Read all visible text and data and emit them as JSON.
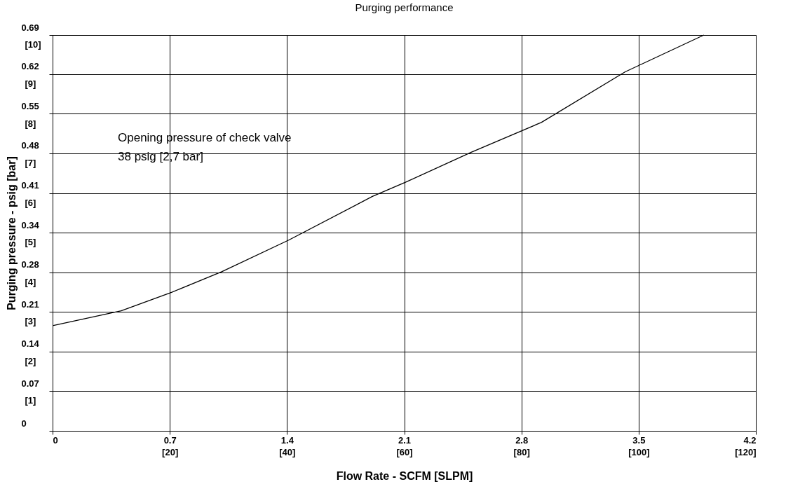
{
  "chart_data": {
    "type": "line",
    "title": "Purging performance",
    "xlabel": "Flow Rate - SCFM [SLPM]",
    "ylabel": "Purging pressure - psig [bar]",
    "x": [
      0,
      0.41,
      0.71,
      1.01,
      1.41,
      1.91,
      2.11,
      2.5,
      2.92,
      3.42,
      3.89
    ],
    "series": [
      {
        "color": "#000000",
        "values": [
          0.183,
          0.209,
          0.241,
          0.277,
          0.332,
          0.408,
          0.433,
          0.485,
          0.537,
          0.625,
          0.689
        ]
      }
    ],
    "xlim": [
      0,
      4.2
    ],
    "ylim": [
      0,
      0.689
    ],
    "xticks": [
      0,
      0.7,
      1.4,
      2.1,
      2.8,
      3.5,
      4.2
    ],
    "x2lim": [
      0,
      120
    ],
    "x2ticks": [
      {
        "value": 20,
        "label": "[20]"
      },
      {
        "value": 40,
        "label": "[40]"
      },
      {
        "value": 60,
        "label": "[60]"
      },
      {
        "value": 80,
        "label": "[80]"
      },
      {
        "value": 100,
        "label": "[100]"
      },
      {
        "value": 120,
        "label": "[120]"
      }
    ],
    "yticks": [
      0,
      {
        "value": 0.069,
        "label": "0.07"
      },
      {
        "value": 0.138,
        "label": "0.14"
      },
      {
        "value": 0.207,
        "label": "0.21"
      },
      {
        "value": 0.276,
        "label": "0.28"
      },
      {
        "value": 0.345,
        "label": "0.34"
      },
      {
        "value": 0.414,
        "label": "0.41"
      },
      {
        "value": 0.483,
        "label": "0.48"
      },
      {
        "value": 0.552,
        "label": "0.55"
      },
      {
        "value": 0.621,
        "label": "0.62"
      },
      {
        "value": 0.689,
        "label": "0.69"
      }
    ],
    "y2lim": [
      0,
      10
    ],
    "y2ticks": [
      {
        "value": 1,
        "label": "[1]"
      },
      {
        "value": 2,
        "label": "[2]"
      },
      {
        "value": 3,
        "label": "[3]"
      },
      {
        "value": 4,
        "label": "[4]"
      },
      {
        "value": 5,
        "label": "[5]"
      },
      {
        "value": 6,
        "label": "[6]"
      },
      {
        "value": 7,
        "label": "[7]"
      },
      {
        "value": 8,
        "label": "[8]"
      },
      {
        "value": 9,
        "label": "[9]"
      },
      {
        "value": 10,
        "label": "[10]"
      }
    ],
    "annotations": [
      "Opening pressure of check valve",
      "38 psig [2,7 bar]"
    ],
    "grid": true,
    "marker": "none",
    "line_style": "solid"
  }
}
